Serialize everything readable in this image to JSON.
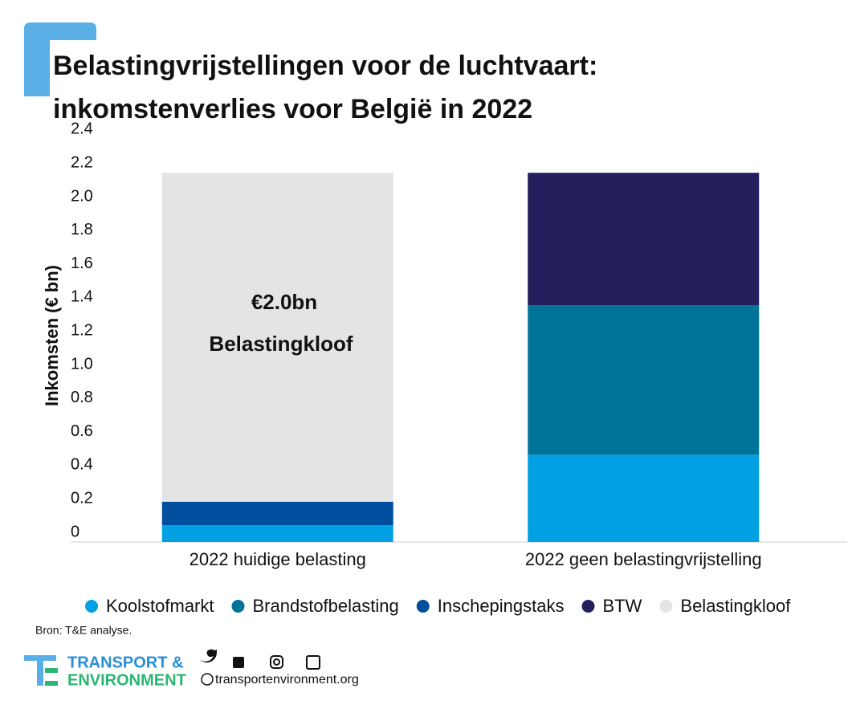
{
  "chart_data": {
    "type": "stacked_bar",
    "title": [
      "Belastingvrijstellingen voor de luchtvaart:",
      "inkomstenverlies voor België in 2022"
    ],
    "y_label": "Inkomsten (€ bn)",
    "categories": [
      "2022 huidige belasting",
      "2022 geen belastingvrijstelling"
    ],
    "series": [
      {
        "name": "Koolstofmarkt",
        "color": "#00a0e3",
        "values": [
          0.1,
          0.52
        ]
      },
      {
        "name": "Brandstofbelasting",
        "color": "#007398",
        "values": [
          0,
          0.89
        ]
      },
      {
        "name": "Inschepingstaks",
        "color": "#004f9e",
        "values": [
          0.14,
          0
        ]
      },
      {
        "name": "BTW",
        "color": "#231f5c",
        "values": [
          0,
          0.79
        ]
      },
      {
        "name": "Belastingkloof",
        "color": "#e4e4e4",
        "values": [
          1.96,
          0
        ]
      }
    ],
    "annotation": [
      "€2.0bn",
      "Belastingkloof"
    ],
    "ylim": [
      0,
      2.4
    ],
    "yticks": [
      0,
      0.2,
      0.4,
      0.6,
      0.8,
      {
        "value": 1,
        "label": "1.0"
      },
      1.2,
      1.4,
      1.6,
      1.8,
      {
        "value": 2,
        "label": "2.0"
      },
      2.2,
      2.4
    ],
    "grid": false,
    "source": "Bron: T&E analyse.",
    "logo": [
      "TRANSPORT &",
      "ENVIRONMENT"
    ],
    "website": "transportenvironment.org"
  }
}
